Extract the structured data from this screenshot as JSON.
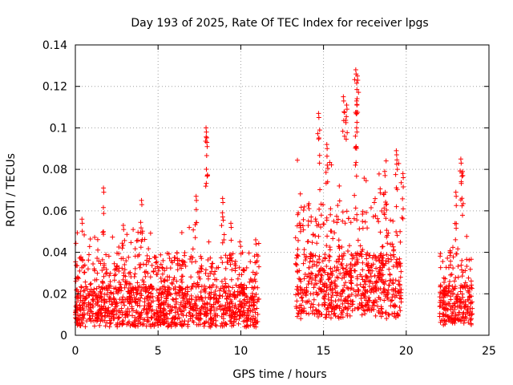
{
  "chart_data": {
    "type": "scatter",
    "title": "Day 193 of 2025, Rate Of TEC Index for receiver lpgs",
    "xlabel": "GPS time / hours",
    "ylabel": "ROTI / TECUs",
    "xlim": [
      0,
      25
    ],
    "ylim": [
      0,
      0.14
    ],
    "x_ticks": [
      0,
      5,
      10,
      15,
      20,
      25
    ],
    "x_tick_labels": [
      "0",
      "5",
      "10",
      "15",
      "20",
      "25"
    ],
    "y_ticks": [
      0,
      0.02,
      0.04,
      0.06,
      0.08,
      0.1,
      0.12,
      0.14
    ],
    "y_tick_labels": [
      "0",
      "0.02",
      "0.04",
      "0.06",
      "0.08",
      "0.1",
      "0.12",
      "0.14"
    ],
    "grid": true,
    "marker": "+",
    "color": "#ff0000",
    "segments": [
      {
        "start": 0.0,
        "end": 11.1,
        "typical_low": 0.004,
        "typical_high": 0.04
      },
      {
        "start": 13.3,
        "end": 19.7,
        "typical_low": 0.008,
        "typical_high": 0.065
      },
      {
        "start": 22.0,
        "end": 24.0,
        "typical_low": 0.005,
        "typical_high": 0.04
      }
    ],
    "peaks": [
      {
        "x": 1.7,
        "y": 0.071
      },
      {
        "x": 4.0,
        "y": 0.065
      },
      {
        "x": 7.3,
        "y": 0.067
      },
      {
        "x": 7.9,
        "y": 0.1
      },
      {
        "x": 7.95,
        "y": 0.093
      },
      {
        "x": 8.9,
        "y": 0.066
      },
      {
        "x": 14.7,
        "y": 0.107
      },
      {
        "x": 15.2,
        "y": 0.092
      },
      {
        "x": 16.2,
        "y": 0.115
      },
      {
        "x": 16.4,
        "y": 0.111
      },
      {
        "x": 16.95,
        "y": 0.128
      },
      {
        "x": 17.05,
        "y": 0.125
      },
      {
        "x": 17.0,
        "y": 0.113
      },
      {
        "x": 17.0,
        "y": 0.1
      },
      {
        "x": 19.4,
        "y": 0.089
      },
      {
        "x": 23.3,
        "y": 0.085
      },
      {
        "x": 23.4,
        "y": 0.079
      },
      {
        "x": 23.0,
        "y": 0.069
      },
      {
        "x": 19.8,
        "y": 0.078
      },
      {
        "x": 18.7,
        "y": 0.079
      },
      {
        "x": 0.4,
        "y": 0.056
      },
      {
        "x": 2.9,
        "y": 0.053
      },
      {
        "x": 9.4,
        "y": 0.054
      },
      {
        "x": 10.9,
        "y": 0.046
      }
    ]
  }
}
